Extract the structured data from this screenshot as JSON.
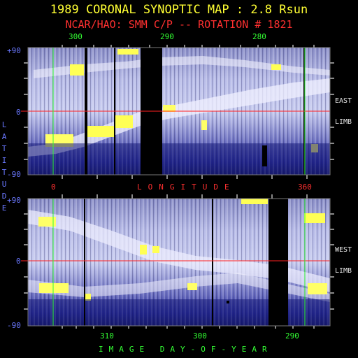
{
  "header": {
    "title": "1989 CORONAL SYNOPTIC MAP : 2.8 Rsun",
    "subtitle": "NCAR/HAO: SMM C/P -- ROTATION # 1821"
  },
  "top_axis": {
    "ticks": [
      "300",
      "290",
      "280"
    ]
  },
  "bottom_axis": {
    "ticks": [
      "310",
      "300",
      "290"
    ],
    "label": "IMAGE DAY-OF-YEAR"
  },
  "middle_axis": {
    "left": "0",
    "right": "360",
    "label": "LONGITUDE"
  },
  "y_axis": {
    "label": "LATITUDE",
    "top": "+90",
    "zero": "0",
    "bottom": "-90"
  },
  "east_panel": {
    "label1": "EAST",
    "label2": "LIMB"
  },
  "west_panel": {
    "label1": "WEST",
    "label2": "LIMB"
  },
  "colors": {
    "title": "#ffff33",
    "subtitle": "#ff3030",
    "axis_green": "#33ff33",
    "axis_blue": "#6a78ff",
    "equator": "#ff2020"
  },
  "chart_data": [
    {
      "type": "heatmap",
      "title": "EAST LIMB",
      "xlabel": "LONGITUDE",
      "ylabel": "LATITUDE",
      "x_range": [
        0,
        360
      ],
      "ylim": [
        -90,
        90
      ],
      "yticks": [
        "+90",
        "0",
        "-90"
      ],
      "top_ticks": [
        "300",
        "290",
        "280"
      ],
      "bright_band": [
        [
          0,
          -45
        ],
        [
          40,
          -25
        ],
        [
          90,
          -5
        ],
        [
          140,
          5
        ],
        [
          200,
          10
        ],
        [
          250,
          15
        ],
        [
          290,
          20
        ],
        [
          330,
          25
        ],
        [
          360,
          30
        ]
      ],
      "gaps_longitude": [
        [
          64,
          68
        ],
        [
          100,
          115
        ]
      ]
    },
    {
      "type": "heatmap",
      "title": "WEST LIMB",
      "xlabel": "IMAGE DAY-OF-YEAR",
      "ylabel": "LATITUDE",
      "x_range": [
        0,
        360
      ],
      "ylim": [
        -90,
        90
      ],
      "yticks": [
        "+90",
        "0",
        "-90"
      ],
      "bottom_ticks": [
        "310",
        "300",
        "290"
      ],
      "bright_band": [
        [
          0,
          30
        ],
        [
          30,
          40
        ],
        [
          80,
          20
        ],
        [
          120,
          5
        ],
        [
          160,
          -10
        ],
        [
          220,
          -15
        ],
        [
          280,
          -5
        ],
        [
          330,
          -20
        ],
        [
          360,
          -30
        ]
      ],
      "gaps_longitude": [
        [
          265,
          280
        ]
      ]
    }
  ]
}
